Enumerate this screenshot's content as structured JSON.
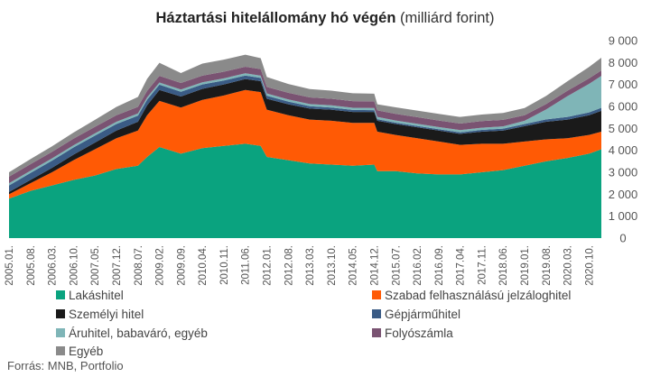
{
  "chart_data": {
    "type": "area",
    "stacked": true,
    "title_bold": "Háztartási hitelállomány hó végén",
    "title_regular": " (milliárd forint)",
    "y_axis_position": "right",
    "ylim": [
      0,
      9000
    ],
    "y_ticks": [
      "0",
      "1 000",
      "2 000",
      "3 000",
      "4 000",
      "5 000",
      "6 000",
      "7 000",
      "8 000",
      "9 000"
    ],
    "x_tick_labels": [
      "2005.01.",
      "2005.08.",
      "2006.03.",
      "2006.10.",
      "2007.05.",
      "2007.12.",
      "2008.07.",
      "2009.02.",
      "2009.09.",
      "2010.04.",
      "2010.11.",
      "2011.06.",
      "2012.01.",
      "2012.08.",
      "2013.03.",
      "2013.10.",
      "2014.05.",
      "2014.12.",
      "2015.07.",
      "2016.02.",
      "2016.09.",
      "2017.04.",
      "2017.11.",
      "2018.06.",
      "2019.01.",
      "2019.08.",
      "2020.03.",
      "2020.10."
    ],
    "x": [
      "2005.01.",
      "2005.08.",
      "2006.03.",
      "2006.10.",
      "2007.05.",
      "2007.12.",
      "2008.07.",
      "2008.10.",
      "2009.02.",
      "2009.09.",
      "2010.04.",
      "2010.11.",
      "2011.06.",
      "2011.11.",
      "2012.01.",
      "2012.08.",
      "2013.03.",
      "2013.10.",
      "2014.05.",
      "2014.12.",
      "2015.01.",
      "2015.07.",
      "2016.02.",
      "2016.09.",
      "2017.04.",
      "2017.11.",
      "2018.06.",
      "2019.01.",
      "2019.08.",
      "2020.03.",
      "2020.10.",
      "2021.02."
    ],
    "series": [
      {
        "name": "Lakáshitel",
        "color": "#0aa37f",
        "values": [
          1800,
          2150,
          2400,
          2650,
          2850,
          3150,
          3300,
          3700,
          4150,
          3850,
          4100,
          4200,
          4300,
          4200,
          3700,
          3550,
          3400,
          3350,
          3300,
          3350,
          3050,
          3050,
          2950,
          2900,
          2900,
          3000,
          3100,
          3300,
          3500,
          3650,
          3850,
          4050
        ]
      },
      {
        "name": "Szabad felhasználású jelzáloghitel",
        "color": "#ff5a05",
        "values": [
          200,
          350,
          600,
          900,
          1200,
          1400,
          1600,
          1900,
          2100,
          2100,
          2200,
          2300,
          2450,
          2450,
          2150,
          2050,
          2000,
          2000,
          1950,
          1900,
          1800,
          1650,
          1600,
          1500,
          1350,
          1300,
          1200,
          1100,
          1000,
          900,
          850,
          800
        ]
      },
      {
        "name": "Személyi hitel",
        "color": "#1a1a1a",
        "values": [
          100,
          150,
          200,
          250,
          300,
          350,
          400,
          450,
          500,
          500,
          500,
          500,
          500,
          500,
          500,
          500,
          500,
          500,
          500,
          500,
          500,
          500,
          500,
          500,
          500,
          550,
          600,
          700,
          800,
          850,
          900,
          950
        ]
      },
      {
        "name": "Gépjárműhitel",
        "color": "#3a5b85",
        "values": [
          300,
          320,
          330,
          330,
          320,
          300,
          280,
          260,
          240,
          220,
          200,
          180,
          160,
          150,
          140,
          120,
          110,
          100,
          90,
          80,
          70,
          60,
          60,
          60,
          70,
          80,
          90,
          100,
          110,
          120,
          130,
          140
        ]
      },
      {
        "name": "Áruhitel, babaváró, egyéb",
        "color": "#7fb5b7",
        "values": [
          100,
          100,
          100,
          100,
          100,
          100,
          100,
          100,
          100,
          100,
          100,
          100,
          100,
          100,
          100,
          100,
          100,
          100,
          100,
          100,
          100,
          100,
          100,
          100,
          100,
          100,
          100,
          150,
          450,
          950,
          1300,
          1450
        ]
      },
      {
        "name": "Folyószámla",
        "color": "#7a5372",
        "values": [
          300,
          300,
          300,
          300,
          300,
          300,
          300,
          300,
          300,
          300,
          300,
          300,
          300,
          300,
          300,
          300,
          300,
          300,
          300,
          300,
          300,
          300,
          300,
          300,
          300,
          300,
          300,
          250,
          250,
          250,
          250,
          250
        ]
      },
      {
        "name": "Egyéb",
        "color": "#8a8a8a",
        "values": [
          200,
          230,
          250,
          280,
          320,
          380,
          450,
          550,
          600,
          450,
          550,
          550,
          550,
          500,
          450,
          400,
          380,
          370,
          360,
          350,
          280,
          300,
          300,
          300,
          300,
          300,
          310,
          330,
          370,
          430,
          520,
          580
        ]
      }
    ],
    "legend": [
      "Lakáshitel",
      "Szabad felhasználású jelzáloghitel",
      "Személyi hitel",
      "Gépjárműhitel",
      "Áruhitel, babaváró, egyéb",
      "Folyószámla",
      "Egyéb"
    ],
    "legend_placement": "bottom",
    "grid": false
  },
  "source": "Forrás: MNB, Portfolio"
}
